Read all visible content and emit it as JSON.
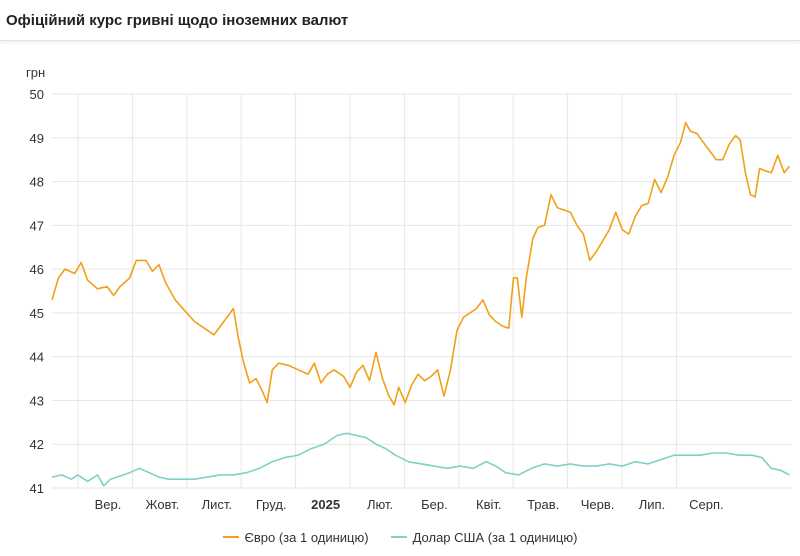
{
  "header": {
    "title": "Офіційний курс гривні щодо іноземних валют"
  },
  "colors": {
    "euro": "#f0a117",
    "usd": "#7fd1c7",
    "grid": "#e6e6e6",
    "axis_text": "#333333"
  },
  "legend": [
    {
      "label": "Євро (за 1 одиницю)",
      "color": "#f0a117"
    },
    {
      "label": "Долар США (за 1 одиницю)",
      "color": "#7fd1c7"
    }
  ],
  "chart_data": {
    "type": "line",
    "ylabel": "грн",
    "ylim": [
      41,
      50
    ],
    "yticks": [
      41,
      42,
      43,
      44,
      45,
      46,
      47,
      48,
      49,
      50
    ],
    "x_months": [
      "Вер.",
      "Жовт.",
      "Лист.",
      "Груд.",
      "2025",
      "Лют.",
      "Бер.",
      "Квіт.",
      "Трав.",
      "Черв.",
      "Лип.",
      "Серп."
    ],
    "x_month_bold": [
      false,
      false,
      false,
      false,
      true,
      false,
      false,
      false,
      false,
      false,
      false,
      false
    ],
    "grid": true,
    "legend_position": "bottom-center",
    "series": [
      {
        "name": "Євро (за 1 одиницю)",
        "color": "#f0a117",
        "points": [
          [
            0.0,
            45.3
          ],
          [
            0.1,
            45.8
          ],
          [
            0.2,
            46.0
          ],
          [
            0.35,
            45.9
          ],
          [
            0.45,
            46.15
          ],
          [
            0.55,
            45.75
          ],
          [
            0.7,
            45.55
          ],
          [
            0.85,
            45.6
          ],
          [
            0.95,
            45.4
          ],
          [
            1.05,
            45.6
          ],
          [
            1.2,
            45.8
          ],
          [
            1.3,
            46.2
          ],
          [
            1.45,
            46.2
          ],
          [
            1.55,
            45.95
          ],
          [
            1.65,
            46.1
          ],
          [
            1.75,
            45.7
          ],
          [
            1.9,
            45.3
          ],
          [
            2.05,
            45.05
          ],
          [
            2.2,
            44.8
          ],
          [
            2.35,
            44.65
          ],
          [
            2.5,
            44.5
          ],
          [
            2.6,
            44.7
          ],
          [
            2.7,
            44.9
          ],
          [
            2.8,
            45.1
          ],
          [
            2.88,
            44.4
          ],
          [
            2.95,
            43.9
          ],
          [
            3.05,
            43.4
          ],
          [
            3.15,
            43.5
          ],
          [
            3.25,
            43.2
          ],
          [
            3.32,
            42.95
          ],
          [
            3.4,
            43.7
          ],
          [
            3.5,
            43.85
          ],
          [
            3.65,
            43.8
          ],
          [
            3.8,
            43.7
          ],
          [
            3.95,
            43.6
          ],
          [
            4.05,
            43.85
          ],
          [
            4.15,
            43.4
          ],
          [
            4.25,
            43.6
          ],
          [
            4.35,
            43.7
          ],
          [
            4.5,
            43.55
          ],
          [
            4.6,
            43.3
          ],
          [
            4.7,
            43.65
          ],
          [
            4.8,
            43.8
          ],
          [
            4.9,
            43.45
          ],
          [
            5.0,
            44.1
          ],
          [
            5.1,
            43.5
          ],
          [
            5.2,
            43.1
          ],
          [
            5.28,
            42.9
          ],
          [
            5.35,
            43.3
          ],
          [
            5.45,
            42.95
          ],
          [
            5.55,
            43.35
          ],
          [
            5.65,
            43.6
          ],
          [
            5.75,
            43.45
          ],
          [
            5.85,
            43.55
          ],
          [
            5.95,
            43.7
          ],
          [
            6.05,
            43.1
          ],
          [
            6.15,
            43.7
          ],
          [
            6.25,
            44.6
          ],
          [
            6.35,
            44.9
          ],
          [
            6.45,
            45.0
          ],
          [
            6.55,
            45.1
          ],
          [
            6.65,
            45.3
          ],
          [
            6.75,
            44.95
          ],
          [
            6.85,
            44.8
          ],
          [
            6.95,
            44.7
          ],
          [
            7.05,
            44.65
          ],
          [
            7.12,
            45.8
          ],
          [
            7.18,
            45.8
          ],
          [
            7.25,
            44.9
          ],
          [
            7.32,
            45.8
          ],
          [
            7.42,
            46.7
          ],
          [
            7.5,
            46.95
          ],
          [
            7.6,
            47.0
          ],
          [
            7.7,
            47.7
          ],
          [
            7.8,
            47.4
          ],
          [
            7.9,
            47.35
          ],
          [
            8.0,
            47.3
          ],
          [
            8.1,
            47.0
          ],
          [
            8.2,
            46.8
          ],
          [
            8.3,
            46.2
          ],
          [
            8.4,
            46.4
          ],
          [
            8.5,
            46.65
          ],
          [
            8.6,
            46.9
          ],
          [
            8.7,
            47.3
          ],
          [
            8.8,
            46.9
          ],
          [
            8.9,
            46.8
          ],
          [
            9.0,
            47.2
          ],
          [
            9.1,
            47.45
          ],
          [
            9.2,
            47.5
          ],
          [
            9.3,
            48.05
          ],
          [
            9.4,
            47.75
          ],
          [
            9.5,
            48.1
          ],
          [
            9.6,
            48.6
          ],
          [
            9.7,
            48.9
          ],
          [
            9.78,
            49.35
          ],
          [
            9.85,
            49.15
          ],
          [
            9.95,
            49.1
          ],
          [
            10.05,
            48.9
          ],
          [
            10.15,
            48.7
          ],
          [
            10.25,
            48.5
          ],
          [
            10.35,
            48.5
          ],
          [
            10.45,
            48.85
          ],
          [
            10.55,
            49.05
          ],
          [
            10.62,
            48.95
          ],
          [
            10.7,
            48.2
          ],
          [
            10.78,
            47.7
          ],
          [
            10.85,
            47.65
          ],
          [
            10.92,
            48.3
          ],
          [
            11.0,
            48.25
          ],
          [
            11.1,
            48.2
          ],
          [
            11.2,
            48.6
          ],
          [
            11.3,
            48.2
          ],
          [
            11.38,
            48.35
          ]
        ]
      },
      {
        "name": "Долар США (за 1 одиницю)",
        "color": "#7fd1c7",
        "points": [
          [
            0.0,
            41.25
          ],
          [
            0.15,
            41.3
          ],
          [
            0.3,
            41.2
          ],
          [
            0.4,
            41.3
          ],
          [
            0.55,
            41.15
          ],
          [
            0.7,
            41.3
          ],
          [
            0.8,
            41.05
          ],
          [
            0.9,
            41.2
          ],
          [
            1.0,
            41.25
          ],
          [
            1.2,
            41.35
          ],
          [
            1.35,
            41.45
          ],
          [
            1.5,
            41.35
          ],
          [
            1.65,
            41.25
          ],
          [
            1.8,
            41.2
          ],
          [
            2.0,
            41.2
          ],
          [
            2.2,
            41.2
          ],
          [
            2.4,
            41.25
          ],
          [
            2.6,
            41.3
          ],
          [
            2.8,
            41.3
          ],
          [
            3.0,
            41.35
          ],
          [
            3.2,
            41.45
          ],
          [
            3.4,
            41.6
          ],
          [
            3.6,
            41.7
          ],
          [
            3.8,
            41.75
          ],
          [
            4.0,
            41.9
          ],
          [
            4.2,
            42.0
          ],
          [
            4.4,
            42.2
          ],
          [
            4.55,
            42.25
          ],
          [
            4.7,
            42.2
          ],
          [
            4.85,
            42.15
          ],
          [
            5.0,
            42.0
          ],
          [
            5.15,
            41.9
          ],
          [
            5.3,
            41.75
          ],
          [
            5.5,
            41.6
          ],
          [
            5.7,
            41.55
          ],
          [
            5.9,
            41.5
          ],
          [
            6.1,
            41.45
          ],
          [
            6.3,
            41.5
          ],
          [
            6.5,
            41.45
          ],
          [
            6.7,
            41.6
          ],
          [
            6.85,
            41.5
          ],
          [
            7.0,
            41.35
          ],
          [
            7.2,
            41.3
          ],
          [
            7.4,
            41.45
          ],
          [
            7.6,
            41.55
          ],
          [
            7.8,
            41.5
          ],
          [
            8.0,
            41.55
          ],
          [
            8.2,
            41.5
          ],
          [
            8.4,
            41.5
          ],
          [
            8.6,
            41.55
          ],
          [
            8.8,
            41.5
          ],
          [
            9.0,
            41.6
          ],
          [
            9.2,
            41.55
          ],
          [
            9.4,
            41.65
          ],
          [
            9.6,
            41.75
          ],
          [
            9.8,
            41.75
          ],
          [
            10.0,
            41.75
          ],
          [
            10.2,
            41.8
          ],
          [
            10.4,
            41.8
          ],
          [
            10.6,
            41.75
          ],
          [
            10.8,
            41.75
          ],
          [
            10.95,
            41.7
          ],
          [
            11.1,
            41.45
          ],
          [
            11.25,
            41.4
          ],
          [
            11.38,
            41.3
          ]
        ]
      }
    ]
  }
}
